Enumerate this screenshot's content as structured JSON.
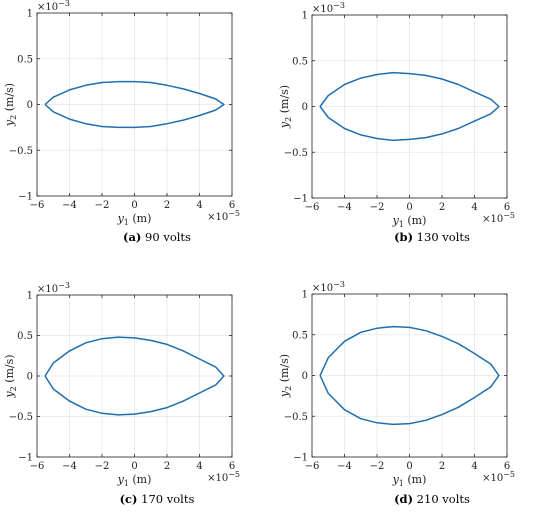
{
  "figure": {
    "panels": [
      {
        "letter": "(a)",
        "caption": "90 volts"
      },
      {
        "letter": "(b)",
        "caption": "130 volts"
      },
      {
        "letter": "(c)",
        "caption": "170 volts"
      },
      {
        "letter": "(d)",
        "caption": "210 volts"
      }
    ]
  },
  "style": {
    "line_color": "#1f6fb0",
    "grid_color": "#e6e6e6",
    "axis_color": "#262626"
  },
  "chart_data": [
    {
      "type": "line",
      "xlabel_var": "y",
      "xlabel_sub": "1",
      "xlabel_unit": " (m)",
      "ylabel_var": "y",
      "ylabel_sub": "2",
      "ylabel_unit": " (m/s)",
      "x_exponent": "×10",
      "x_exponent_power": "−5",
      "y_exponent": "×10",
      "y_exponent_power": "−3",
      "xlim": [
        -6,
        6
      ],
      "ylim": [
        -1,
        1
      ],
      "xticks": [
        -6,
        -4,
        -2,
        0,
        2,
        4,
        6
      ],
      "yticks": [
        -1,
        -0.5,
        0,
        0.5,
        1
      ],
      "xtick_labels": [
        "−6",
        "−4",
        "−2",
        "0",
        "2",
        "4",
        "6"
      ],
      "ytick_labels": [
        "−1",
        "−0.5",
        "0",
        "0.5",
        "1"
      ],
      "grid": true,
      "series": [
        {
          "x": [
            -5.5,
            -5.0,
            -4.0,
            -3.0,
            -2.0,
            -1.0,
            0.0,
            1.0,
            2.0,
            3.0,
            4.0,
            5.0,
            5.5,
            5.0,
            4.0,
            3.0,
            2.0,
            1.0,
            0.0,
            -1.0,
            -2.0,
            -3.0,
            -4.0,
            -5.0,
            -5.5
          ],
          "y": [
            0.0,
            0.08,
            0.16,
            0.21,
            0.24,
            0.25,
            0.25,
            0.24,
            0.21,
            0.17,
            0.12,
            0.06,
            0.0,
            -0.06,
            -0.12,
            -0.17,
            -0.21,
            -0.24,
            -0.25,
            -0.25,
            -0.24,
            -0.21,
            -0.16,
            -0.08,
            0.0
          ]
        }
      ]
    },
    {
      "type": "line",
      "xlabel_var": "y",
      "xlabel_sub": "1",
      "xlabel_unit": " (m)",
      "ylabel_var": "y",
      "ylabel_sub": "2",
      "ylabel_unit": " (m/s)",
      "x_exponent": "×10",
      "x_exponent_power": "−5",
      "y_exponent": "×10",
      "y_exponent_power": "−3",
      "xlim": [
        -6,
        6
      ],
      "ylim": [
        -1,
        1
      ],
      "xticks": [
        -6,
        -4,
        -2,
        0,
        2,
        4,
        6
      ],
      "yticks": [
        -1,
        -0.5,
        0,
        0.5,
        1
      ],
      "xtick_labels": [
        "−6",
        "−4",
        "−2",
        "0",
        "2",
        "4",
        "6"
      ],
      "ytick_labels": [
        "−1",
        "−0.5",
        "0",
        "0.5",
        "1"
      ],
      "grid": true,
      "series": [
        {
          "x": [
            -5.5,
            -5.0,
            -4.0,
            -3.0,
            -2.0,
            -1.0,
            0.0,
            1.0,
            2.0,
            3.0,
            4.0,
            5.0,
            5.5,
            5.0,
            4.0,
            3.0,
            2.0,
            1.0,
            0.0,
            -1.0,
            -2.0,
            -3.0,
            -4.0,
            -5.0,
            -5.5
          ],
          "y": [
            0.0,
            0.12,
            0.24,
            0.31,
            0.35,
            0.37,
            0.36,
            0.34,
            0.3,
            0.24,
            0.16,
            0.08,
            0.0,
            -0.08,
            -0.16,
            -0.24,
            -0.3,
            -0.34,
            -0.36,
            -0.37,
            -0.35,
            -0.31,
            -0.24,
            -0.12,
            0.0
          ]
        }
      ]
    },
    {
      "type": "line",
      "xlabel_var": "y",
      "xlabel_sub": "1",
      "xlabel_unit": " (m)",
      "ylabel_var": "y",
      "ylabel_sub": "2",
      "ylabel_unit": " (m/s)",
      "x_exponent": "×10",
      "x_exponent_power": "−5",
      "y_exponent": "×10",
      "y_exponent_power": "−3",
      "xlim": [
        -6,
        6
      ],
      "ylim": [
        -1,
        1
      ],
      "xticks": [
        -6,
        -4,
        -2,
        0,
        2,
        4,
        6
      ],
      "yticks": [
        -1,
        -0.5,
        0,
        0.5,
        1
      ],
      "xtick_labels": [
        "−6",
        "−4",
        "−2",
        "0",
        "2",
        "4",
        "6"
      ],
      "ytick_labels": [
        "−1",
        "−0.5",
        "0",
        "0.5",
        "1"
      ],
      "grid": true,
      "series": [
        {
          "x": [
            -5.5,
            -5.0,
            -4.0,
            -3.0,
            -2.0,
            -1.0,
            0.0,
            1.0,
            2.0,
            3.0,
            4.0,
            5.0,
            5.5,
            5.0,
            4.0,
            3.0,
            2.0,
            1.0,
            0.0,
            -1.0,
            -2.0,
            -3.0,
            -4.0,
            -5.0,
            -5.5
          ],
          "y": [
            0.0,
            0.16,
            0.31,
            0.41,
            0.46,
            0.48,
            0.47,
            0.44,
            0.39,
            0.31,
            0.21,
            0.11,
            0.0,
            -0.11,
            -0.21,
            -0.31,
            -0.39,
            -0.44,
            -0.47,
            -0.48,
            -0.46,
            -0.41,
            -0.31,
            -0.16,
            0.0
          ]
        }
      ]
    },
    {
      "type": "line",
      "xlabel_var": "y",
      "xlabel_sub": "1",
      "xlabel_unit": " (m)",
      "ylabel_var": "y",
      "ylabel_sub": "2",
      "ylabel_unit": " (m/s)",
      "x_exponent": "×10",
      "x_exponent_power": "−5",
      "y_exponent": "×10",
      "y_exponent_power": "−3",
      "xlim": [
        -6,
        6
      ],
      "ylim": [
        -1,
        1
      ],
      "xticks": [
        -6,
        -4,
        -2,
        0,
        2,
        4,
        6
      ],
      "yticks": [
        -1,
        -0.5,
        0,
        0.5,
        1
      ],
      "xtick_labels": [
        "−6",
        "−4",
        "−2",
        "0",
        "2",
        "4",
        "6"
      ],
      "ytick_labels": [
        "−1",
        "−0.5",
        "0",
        "0.5",
        "1"
      ],
      "grid": true,
      "series": [
        {
          "x": [
            -5.5,
            -5.0,
            -4.0,
            -3.0,
            -2.0,
            -1.0,
            0.0,
            1.0,
            2.0,
            3.0,
            4.0,
            5.0,
            5.5,
            5.0,
            4.0,
            3.0,
            2.0,
            1.0,
            0.0,
            -1.0,
            -2.0,
            -3.0,
            -4.0,
            -5.0,
            -5.5
          ],
          "y": [
            0.0,
            0.22,
            0.42,
            0.53,
            0.58,
            0.6,
            0.59,
            0.55,
            0.48,
            0.39,
            0.27,
            0.14,
            0.0,
            -0.14,
            -0.27,
            -0.39,
            -0.48,
            -0.55,
            -0.59,
            -0.6,
            -0.58,
            -0.53,
            -0.42,
            -0.22,
            0.0
          ]
        }
      ]
    }
  ]
}
